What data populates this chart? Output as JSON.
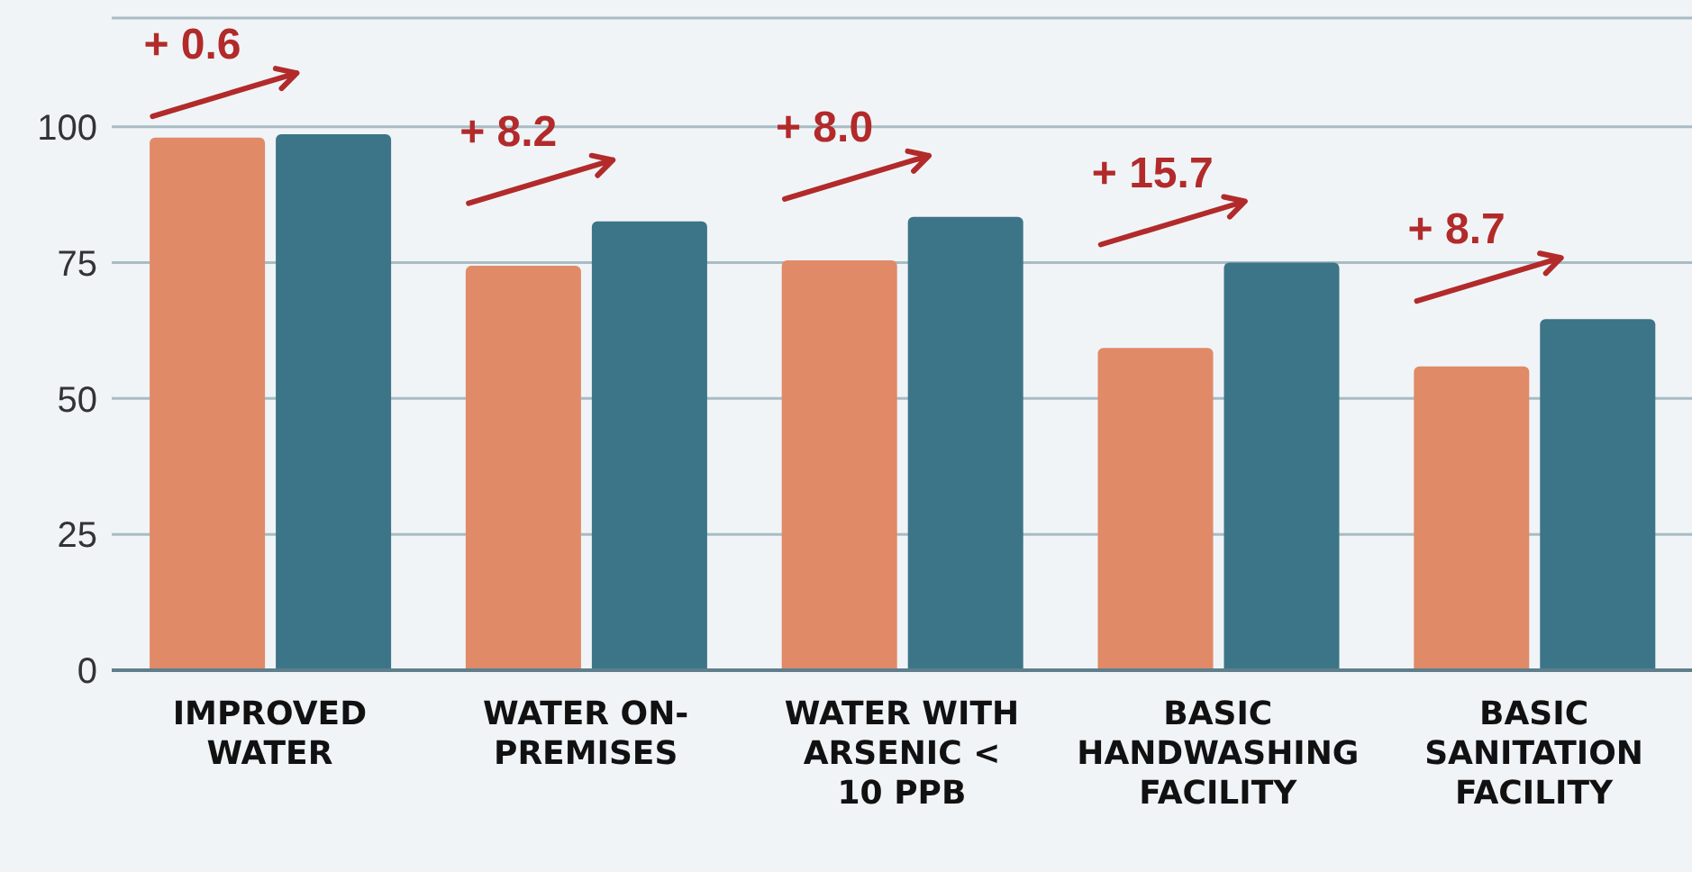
{
  "chart_data": {
    "type": "bar",
    "categories": [
      "IMPROVED WATER",
      "WATER ON-PREMISES",
      "WATER WITH ARSENIC < 10 PPB",
      "BASIC HANDWASHING FACILITY",
      "BASIC SANITATION FACILITY"
    ],
    "series": [
      {
        "color": "#e08a68",
        "values": [
          98.0,
          74.4,
          75.4,
          59.3,
          55.9
        ]
      },
      {
        "color": "#3c7587",
        "values": [
          98.6,
          82.6,
          83.4,
          75.0,
          64.6
        ]
      }
    ],
    "ylim": [
      0,
      120
    ],
    "yticks": [
      0,
      25,
      50,
      75,
      100
    ],
    "grid": "y",
    "annotations": [
      "+ 0.6",
      "+ 8.2",
      "+ 8.0",
      "+ 15.7",
      "+ 8.7"
    ]
  }
}
